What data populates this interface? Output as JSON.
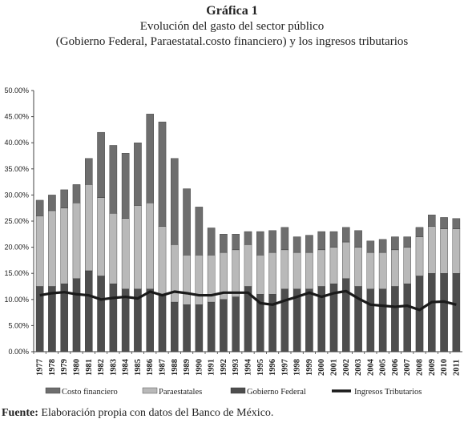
{
  "header": {
    "title": "Gráfica 1",
    "subtitle1": "Evolución del gasto del sector público",
    "subtitle2": "(Gobierno Federal, Paraestatal.costo financiero) y los ingresos tributarios"
  },
  "source": {
    "label": "Fuente:",
    "text": "Elaboración propia con datos del Banco de México."
  },
  "colors": {
    "costo": "#6e6e6e",
    "paraestatales": "#b9b9b9",
    "gobierno": "#4e4e4e",
    "ingresos": "#1a1a1a"
  },
  "chart_data": {
    "type": "bar",
    "stacked": true,
    "title": "",
    "xlabel": "",
    "ylabel": "",
    "ylim": [
      0,
      50
    ],
    "yticks": [
      "0.00%",
      "5.00%",
      "10.00%",
      "15.00%",
      "20.00%",
      "25.00%",
      "30.00%",
      "35.00%",
      "40.00%",
      "45.00%",
      "50.00%"
    ],
    "grid": false,
    "legend_position": "bottom",
    "categories": [
      "1977",
      "1978",
      "1979",
      "1980",
      "1981",
      "1982",
      "1983",
      "1984",
      "1985",
      "1986",
      "1987",
      "1988",
      "1989",
      "1990",
      "1991",
      "1992",
      "1993",
      "1994",
      "1995",
      "1996",
      "1997",
      "1998",
      "1999",
      "2000",
      "2001",
      "2002",
      "2003",
      "2004",
      "2005",
      "2006",
      "2007",
      "2008",
      "2009",
      "2010",
      "2011"
    ],
    "series": [
      {
        "name": "Gobierno Federal",
        "kind": "bar",
        "values": [
          12.5,
          12.5,
          13.0,
          14.0,
          15.5,
          14.5,
          13.0,
          12.0,
          12.0,
          12.0,
          11.0,
          9.5,
          9.0,
          9.0,
          9.5,
          10.0,
          10.5,
          12.5,
          11.0,
          11.0,
          12.0,
          12.0,
          12.0,
          12.5,
          13.0,
          14.0,
          12.5,
          12.0,
          12.0,
          12.5,
          13.0,
          14.5,
          15.0,
          15.0,
          15.0
        ]
      },
      {
        "name": "Paraestatales",
        "kind": "bar",
        "values": [
          13.5,
          14.5,
          14.5,
          14.5,
          16.5,
          15.0,
          13.5,
          13.5,
          16.0,
          16.5,
          13.0,
          11.0,
          9.5,
          9.5,
          9.0,
          9.0,
          9.0,
          8.0,
          7.5,
          8.0,
          7.5,
          7.0,
          7.0,
          7.0,
          7.0,
          7.0,
          7.5,
          7.0,
          7.0,
          7.0,
          7.0,
          7.5,
          9.0,
          8.5,
          8.5
        ]
      },
      {
        "name": "Costo financiero",
        "kind": "bar",
        "values": [
          3.0,
          3.0,
          3.5,
          3.5,
          5.0,
          12.5,
          13.0,
          12.5,
          12.0,
          17.0,
          20.0,
          16.5,
          12.7,
          9.2,
          5.2,
          3.5,
          3.0,
          2.5,
          4.5,
          4.2,
          4.3,
          3.0,
          3.3,
          3.5,
          3.0,
          2.8,
          3.2,
          2.2,
          2.5,
          2.5,
          2.0,
          1.8,
          2.2,
          2.2,
          2.0
        ]
      },
      {
        "name": "Ingresos Tributarios",
        "kind": "line",
        "values": [
          10.8,
          11.2,
          11.4,
          11.0,
          10.8,
          10.0,
          10.3,
          10.5,
          10.2,
          11.5,
          10.8,
          11.5,
          11.2,
          10.8,
          10.8,
          11.3,
          11.3,
          11.3,
          9.3,
          9.0,
          9.8,
          10.5,
          11.3,
          10.5,
          11.2,
          11.6,
          10.2,
          9.0,
          8.8,
          8.6,
          8.8,
          8.0,
          9.5,
          9.6,
          9.0
        ]
      }
    ]
  }
}
